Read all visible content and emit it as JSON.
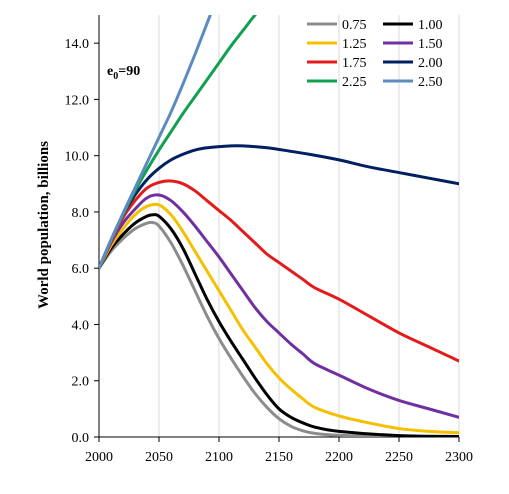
{
  "chart_data": {
    "type": "line",
    "title": "",
    "annotation": "e",
    "annotation_sub": "0",
    "annotation_rest": "=90",
    "ylabel": "World population, billions",
    "xlabel": "",
    "xlim": [
      2000,
      2300
    ],
    "ylim": [
      0,
      15
    ],
    "x_ticks": [
      2000,
      2050,
      2100,
      2150,
      2200,
      2250,
      2300
    ],
    "y_ticks": [
      0,
      2,
      4,
      6,
      8,
      10,
      12,
      14
    ],
    "x_tick_labels": [
      "2000",
      "2050",
      "2100",
      "2150",
      "2200",
      "2250",
      "2300"
    ],
    "y_tick_labels": [
      "0.0",
      "2.0",
      "4.0",
      "6.0",
      "8.0",
      "10.0",
      "12.0",
      "14.0"
    ],
    "grid": "vertical",
    "legend_position": "top-right",
    "series": [
      {
        "name": "0.75",
        "color": "#8c8c8c",
        "x": [
          2000,
          2010,
          2020,
          2030,
          2040,
          2045,
          2050,
          2060,
          2070,
          2080,
          2090,
          2100,
          2110,
          2120,
          2130,
          2140,
          2150,
          2160,
          2170,
          2180,
          2200,
          2250,
          2300
        ],
        "y": [
          6.0,
          6.6,
          7.05,
          7.4,
          7.6,
          7.62,
          7.5,
          6.9,
          6.1,
          5.2,
          4.3,
          3.5,
          2.8,
          2.15,
          1.55,
          1.05,
          0.65,
          0.38,
          0.22,
          0.13,
          0.06,
          0.01,
          0.0
        ]
      },
      {
        "name": "1.00",
        "color": "#000000",
        "x": [
          2000,
          2010,
          2020,
          2030,
          2040,
          2045,
          2050,
          2060,
          2070,
          2080,
          2090,
          2100,
          2110,
          2120,
          2130,
          2140,
          2150,
          2160,
          2170,
          2180,
          2200,
          2250,
          2300
        ],
        "y": [
          6.0,
          6.7,
          7.2,
          7.6,
          7.85,
          7.9,
          7.85,
          7.4,
          6.7,
          5.8,
          4.9,
          4.1,
          3.4,
          2.75,
          2.1,
          1.5,
          1.0,
          0.7,
          0.5,
          0.35,
          0.2,
          0.05,
          0.02
        ]
      },
      {
        "name": "1.25",
        "color": "#f5c000",
        "x": [
          2000,
          2010,
          2020,
          2030,
          2040,
          2050,
          2060,
          2070,
          2080,
          2090,
          2100,
          2110,
          2120,
          2130,
          2140,
          2150,
          2160,
          2170,
          2180,
          2200,
          2225,
          2250,
          2275,
          2300
        ],
        "y": [
          6.0,
          6.8,
          7.4,
          7.9,
          8.2,
          8.25,
          7.9,
          7.3,
          6.6,
          5.9,
          5.2,
          4.5,
          3.8,
          3.2,
          2.6,
          2.1,
          1.7,
          1.35,
          1.05,
          0.75,
          0.5,
          0.3,
          0.2,
          0.15
        ]
      },
      {
        "name": "1.50",
        "color": "#7030a0",
        "x": [
          2000,
          2010,
          2020,
          2030,
          2040,
          2050,
          2060,
          2070,
          2080,
          2090,
          2100,
          2110,
          2120,
          2130,
          2140,
          2150,
          2160,
          2170,
          2180,
          2200,
          2225,
          2250,
          2275,
          2300
        ],
        "y": [
          6.0,
          6.9,
          7.6,
          8.1,
          8.5,
          8.6,
          8.4,
          8.0,
          7.5,
          6.95,
          6.4,
          5.8,
          5.2,
          4.6,
          4.1,
          3.7,
          3.3,
          2.95,
          2.6,
          2.2,
          1.7,
          1.3,
          1.0,
          0.7
        ]
      },
      {
        "name": "1.75",
        "color": "#e31b1b",
        "x": [
          2000,
          2010,
          2020,
          2030,
          2040,
          2050,
          2060,
          2070,
          2080,
          2090,
          2100,
          2110,
          2120,
          2130,
          2140,
          2150,
          2160,
          2170,
          2180,
          2200,
          2225,
          2250,
          2275,
          2300
        ],
        "y": [
          6.0,
          6.95,
          7.8,
          8.4,
          8.85,
          9.05,
          9.1,
          9.0,
          8.75,
          8.4,
          8.05,
          7.7,
          7.3,
          6.9,
          6.5,
          6.2,
          5.9,
          5.6,
          5.3,
          4.9,
          4.3,
          3.7,
          3.2,
          2.7
        ]
      },
      {
        "name": "2.00",
        "color": "#002060",
        "x": [
          2000,
          2010,
          2020,
          2030,
          2040,
          2050,
          2060,
          2070,
          2080,
          2090,
          2100,
          2110,
          2120,
          2130,
          2140,
          2150,
          2175,
          2200,
          2225,
          2250,
          2275,
          2300
        ],
        "y": [
          6.0,
          7.0,
          7.9,
          8.6,
          9.15,
          9.55,
          9.85,
          10.05,
          10.2,
          10.28,
          10.32,
          10.35,
          10.35,
          10.32,
          10.28,
          10.22,
          10.05,
          9.85,
          9.6,
          9.4,
          9.2,
          9.0
        ]
      },
      {
        "name": "2.25",
        "color": "#0fa050",
        "x": [
          2000,
          2010,
          2020,
          2030,
          2040,
          2050,
          2060,
          2070,
          2080,
          2090,
          2100,
          2110,
          2120,
          2130,
          2140,
          2145
        ],
        "y": [
          6.0,
          7.0,
          7.9,
          8.75,
          9.5,
          10.2,
          10.85,
          11.5,
          12.1,
          12.7,
          13.3,
          13.9,
          14.45,
          15.0,
          15.5,
          15.8
        ]
      },
      {
        "name": "2.50",
        "color": "#5b8bc0",
        "x": [
          2000,
          2010,
          2020,
          2030,
          2040,
          2050,
          2060,
          2070,
          2080,
          2090,
          2100
        ],
        "y": [
          6.0,
          7.0,
          7.95,
          8.85,
          9.75,
          10.65,
          11.55,
          12.55,
          13.6,
          14.7,
          15.8
        ]
      }
    ]
  }
}
